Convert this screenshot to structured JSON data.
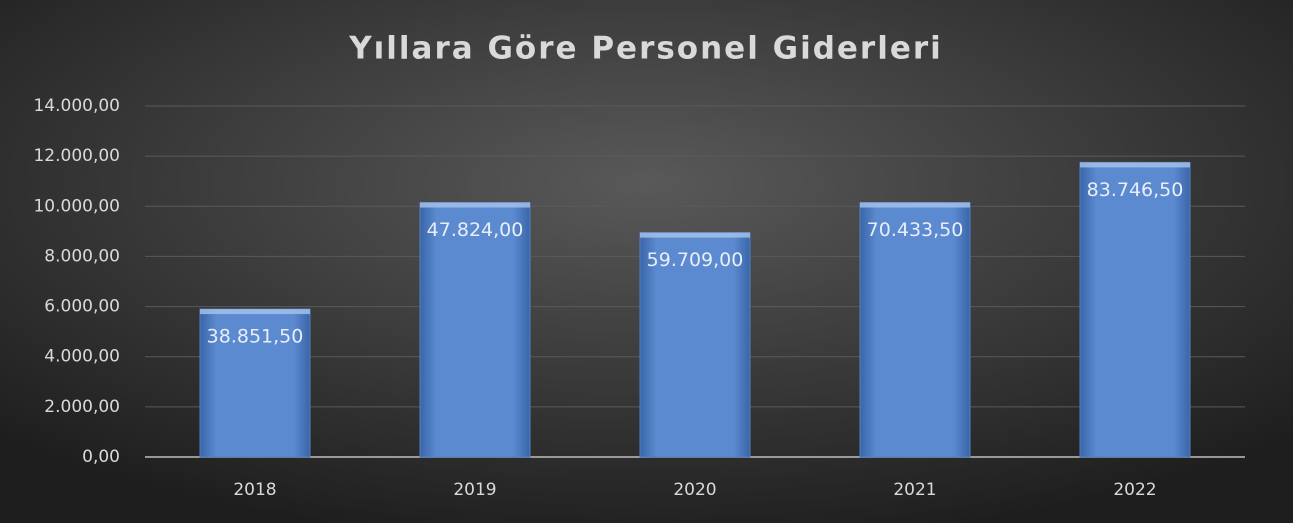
{
  "chart_data": {
    "type": "bar",
    "title": "Yıllara Göre Personel Giderleri",
    "categories": [
      "2018",
      "2019",
      "2020",
      "2021",
      "2022"
    ],
    "values": [
      5900,
      10150,
      8950,
      10150,
      11750
    ],
    "annotations": [
      "38.851,50",
      "47.824,00",
      "59.709,00",
      "70.433,50",
      "83.746,50"
    ],
    "color": "#4f81c7",
    "ylim": [
      0,
      14000
    ],
    "yticks": [
      {
        "value": 0,
        "label": "0,00"
      },
      {
        "value": 2000,
        "label": "2.000,00"
      },
      {
        "value": 4000,
        "label": "4.000,00"
      },
      {
        "value": 6000,
        "label": "6.000,00"
      },
      {
        "value": 8000,
        "label": "8.000,00"
      },
      {
        "value": 10000,
        "label": "10.000,00"
      },
      {
        "value": 12000,
        "label": "12.000,00"
      },
      {
        "value": 14000,
        "label": "14.000,00"
      }
    ],
    "grid": true
  }
}
